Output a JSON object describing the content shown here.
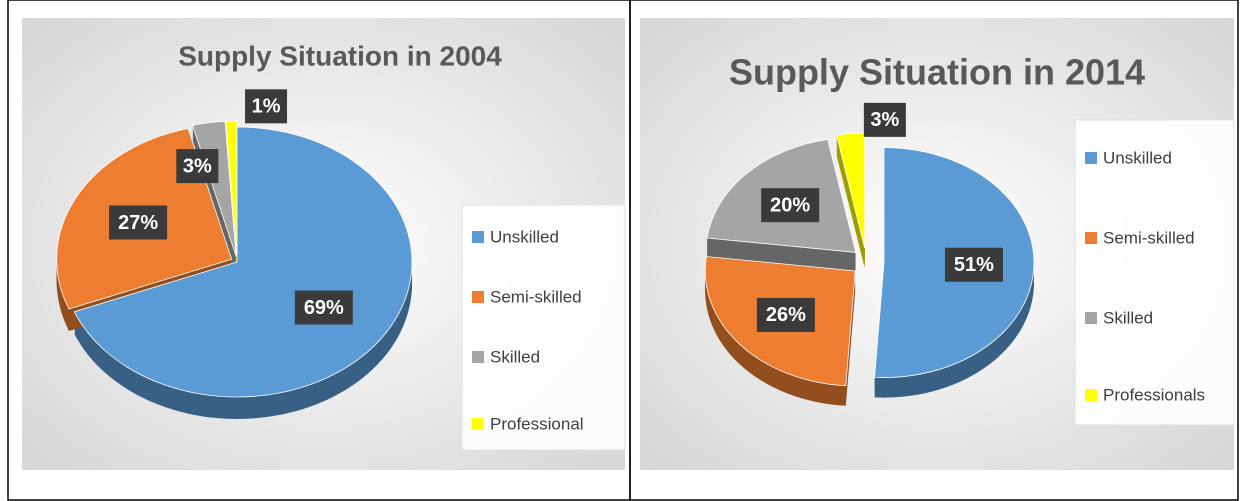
{
  "chart_data": [
    {
      "type": "pie",
      "title": "Supply Situation in 2004",
      "categories": [
        "Unskilled",
        "Semi-skilled",
        "Skilled",
        "Professional"
      ],
      "values": [
        69,
        27,
        3,
        1
      ],
      "value_labels": [
        "69%",
        "27%",
        "3%",
        "1%"
      ],
      "colors": [
        "#5b9bd5",
        "#ed7d31",
        "#a5a5a5",
        "#ffff00"
      ],
      "legend": "right"
    },
    {
      "type": "pie",
      "title": "Supply Situation in 2014",
      "categories": [
        "Unskilled",
        "Semi-skilled",
        "Skilled",
        "Professionals"
      ],
      "values": [
        51,
        26,
        20,
        3
      ],
      "value_labels": [
        "51%",
        "26%",
        "20%",
        "3%"
      ],
      "colors": [
        "#5b9bd5",
        "#ed7d31",
        "#a5a5a5",
        "#ffff00"
      ],
      "legend": "right"
    }
  ]
}
